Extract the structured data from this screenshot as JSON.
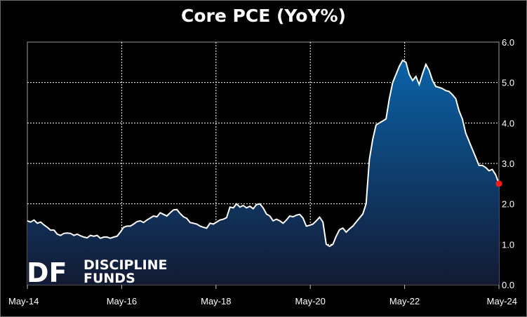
{
  "chart_data": {
    "type": "area",
    "title": "Core PCE (YoY%)",
    "xlabel": "",
    "ylabel": "",
    "ylim": [
      0,
      6
    ],
    "yticks": [
      "0.0",
      "1.0",
      "2.0",
      "3.0",
      "4.0",
      "5.0",
      "6.0"
    ],
    "xticks": [
      "May-14",
      "May-16",
      "May-18",
      "May-20",
      "May-22",
      "May-24"
    ],
    "x_start": "May-14",
    "x_end": "May-24",
    "grid": true,
    "series": [
      {
        "values": [
          1.58,
          1.55,
          1.6,
          1.52,
          1.55,
          1.48,
          1.42,
          1.35,
          1.35,
          1.25,
          1.22,
          1.27,
          1.28,
          1.27,
          1.22,
          1.25,
          1.21,
          1.18,
          1.16,
          1.22,
          1.2,
          1.22,
          1.15,
          1.18,
          1.18,
          1.15,
          1.18,
          1.2,
          1.3,
          1.42,
          1.45,
          1.45,
          1.5,
          1.56,
          1.58,
          1.54,
          1.6,
          1.65,
          1.7,
          1.68,
          1.78,
          1.74,
          1.7,
          1.78,
          1.85,
          1.86,
          1.76,
          1.68,
          1.64,
          1.54,
          1.52,
          1.5,
          1.45,
          1.42,
          1.4,
          1.52,
          1.5,
          1.55,
          1.6,
          1.62,
          1.66,
          1.92,
          1.9,
          2.0,
          1.92,
          1.96,
          1.9,
          1.94,
          1.88,
          1.98,
          2.0,
          1.9,
          1.75,
          1.7,
          1.58,
          1.62,
          1.58,
          1.52,
          1.6,
          1.7,
          1.68,
          1.72,
          1.74,
          1.65,
          1.45,
          1.47,
          1.5,
          1.58,
          1.67,
          1.55,
          1.0,
          0.95,
          1.0,
          1.2,
          1.36,
          1.4,
          1.3,
          1.38,
          1.45,
          1.55,
          1.65,
          1.75,
          2.0,
          3.1,
          3.6,
          3.95,
          4.0,
          4.05,
          4.1,
          4.6,
          5.0,
          5.2,
          5.4,
          5.55,
          5.5,
          5.2,
          5.05,
          5.15,
          4.95,
          5.22,
          5.45,
          5.3,
          5.05,
          4.9,
          4.88,
          4.85,
          4.8,
          4.78,
          4.7,
          4.6,
          4.3,
          4.1,
          3.75,
          3.55,
          3.35,
          3.15,
          2.95,
          2.95,
          2.9,
          2.82,
          2.85,
          2.72,
          2.5
        ]
      }
    ],
    "colors": {
      "line": "#ffffff",
      "fill_top": "#0a62a8",
      "fill_bottom": "#131a33",
      "last_point": "#ff1a1a",
      "grid": "#ffffff"
    }
  },
  "logo": {
    "mark": "DF",
    "line1": "DISCIPLINE",
    "line2": "FUNDS"
  }
}
